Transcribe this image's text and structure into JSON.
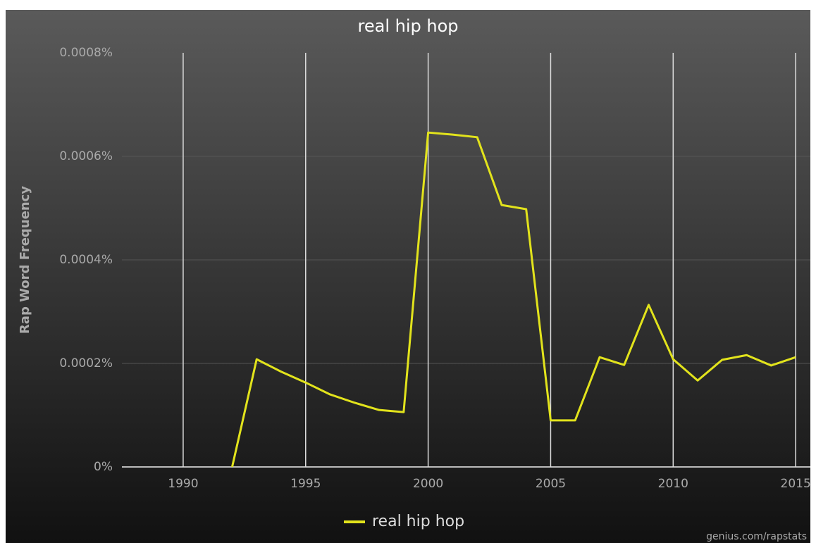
{
  "chart_data": {
    "type": "line",
    "title": "real hip hop",
    "ylabel": "Rap Word Frequency",
    "credit": "genius.com/rapstats",
    "x": [
      1992,
      1993,
      1994,
      1995,
      1996,
      1997,
      1998,
      1999,
      2000,
      2001,
      2002,
      2003,
      2004,
      2005,
      2006,
      2007,
      2008,
      2009,
      2010,
      2011,
      2012,
      2013,
      2014,
      2015
    ],
    "series": [
      {
        "name": "real hip hop",
        "color": "#e2e31c",
        "values": [
          0,
          0.000208,
          0.000184,
          0.000163,
          0.00014,
          0.000124,
          0.00011,
          0.000106,
          0.000646,
          0.000642,
          0.000637,
          0.000506,
          0.000498,
          9e-05,
          9e-05,
          0.000212,
          0.000197,
          0.000313,
          0.000208,
          0.000167,
          0.000207,
          0.000216,
          0.000196,
          0.000212
        ]
      }
    ],
    "xlim": [
      1987.5,
      2015.6
    ],
    "xticks": [
      1990,
      1995,
      2000,
      2005,
      2010,
      2015
    ],
    "ylim": [
      0,
      0.0008
    ],
    "yticks": [
      {
        "value": 0,
        "label": "0%"
      },
      {
        "value": 0.0002,
        "label": "0.0002%"
      },
      {
        "value": 0.0004,
        "label": "0.0004%"
      },
      {
        "value": 0.0006,
        "label": "0.0006%"
      },
      {
        "value": 0.0008,
        "label": "0.0008%"
      }
    ],
    "grid": true,
    "legend": "bottom"
  }
}
